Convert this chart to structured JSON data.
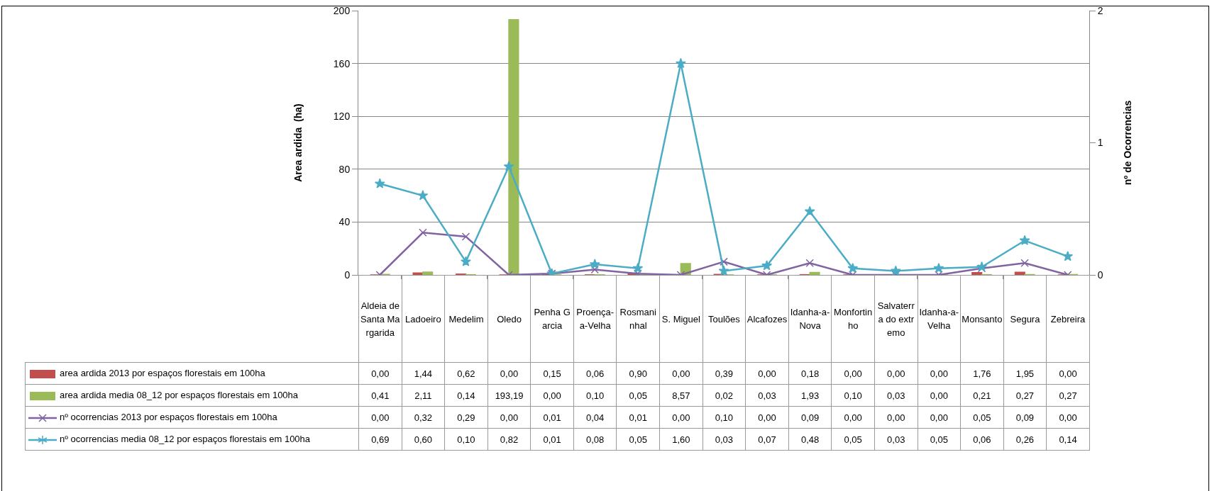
{
  "chart_data": {
    "type": "bar",
    "ylabel": "Area ardida  (ha)",
    "y2label": "nº de Ocorrencias",
    "categories": [
      "Aldeia de Santa Margarida",
      "Ladoeiro",
      "Medelim",
      "Oledo",
      "Penha Garcia",
      "Proença-a-Velha",
      "Rosmaninhal",
      "S. Miguel",
      "Toulões",
      "Alcafozes",
      "Idanha-a-Nova",
      "Monfortinho",
      "Salvaterra do extremo",
      "Idanha-a-Velha",
      "Monsanto",
      "Segura",
      "Zebreira"
    ],
    "series": [
      {
        "name": "area ardida 2013 por espaços florestais em 100ha",
        "color": "#c0504d",
        "values": [
          0,
          1.44,
          0.62,
          0,
          0.15,
          0.06,
          0.9,
          0,
          0.39,
          0,
          0.18,
          0,
          0,
          0,
          1.76,
          1.95,
          0
        ],
        "value_labels": [
          "0,00",
          "1,44",
          "0,62",
          "0,00",
          "0,15",
          "0,06",
          "0,90",
          "0,00",
          "0,39",
          "0,00",
          "0,18",
          "0,00",
          "0,00",
          "0,00",
          "1,76",
          "1,95",
          "0,00"
        ]
      },
      {
        "name": "area ardida media 08_12 por espaços florestais em 100ha",
        "color": "#9bbb59",
        "values": [
          0.41,
          2.11,
          0.14,
          193.19,
          0,
          0.1,
          0.05,
          8.57,
          0.02,
          0.03,
          1.93,
          0.1,
          0.03,
          0,
          0.21,
          0.27,
          0.27
        ],
        "value_labels": [
          "0,41",
          "2,11",
          "0,14",
          "193,19",
          "0,00",
          "0,10",
          "0,05",
          "8,57",
          "0,02",
          "0,03",
          "1,93",
          "0,10",
          "0,03",
          "0,00",
          "0,21",
          "0,27",
          "0,27"
        ]
      },
      {
        "name": "nº ocorrencias 2013 por espaços florestais em 100ha",
        "type": "line",
        "axis": "y2",
        "marker": "cross",
        "color": "#8064a2",
        "values": [
          0,
          0.32,
          0.29,
          0,
          0.01,
          0.04,
          0.01,
          0,
          0.1,
          0,
          0.09,
          0,
          0,
          0,
          0.05,
          0.09,
          0
        ],
        "value_labels": [
          "0,00",
          "0,32",
          "0,29",
          "0,00",
          "0,01",
          "0,04",
          "0,01",
          "0,00",
          "0,10",
          "0,00",
          "0,09",
          "0,00",
          "0,00",
          "0,00",
          "0,05",
          "0,09",
          "0,00"
        ]
      },
      {
        "name": "nº ocorrencias media 08_12 por espaços florestais em 100ha",
        "type": "line",
        "axis": "y2",
        "marker": "star",
        "color": "#4bacc6",
        "values": [
          0.69,
          0.6,
          0.1,
          0.82,
          0.01,
          0.08,
          0.05,
          1.6,
          0.03,
          0.07,
          0.48,
          0.05,
          0.03,
          0.05,
          0.06,
          0.26,
          0.14
        ],
        "value_labels": [
          "0,69",
          "0,60",
          "0,10",
          "0,82",
          "0,01",
          "0,08",
          "0,05",
          "1,60",
          "0,03",
          "0,07",
          "0,48",
          "0,05",
          "0,03",
          "0,05",
          "0,06",
          "0,26",
          "0,14"
        ]
      }
    ],
    "ylim": [
      0,
      200
    ],
    "yticks": [
      0,
      40,
      80,
      120,
      160,
      200
    ],
    "y2lim": [
      0,
      2
    ],
    "y2ticks": [
      0,
      1,
      2
    ],
    "grid": "y",
    "legend": "bottom left"
  }
}
